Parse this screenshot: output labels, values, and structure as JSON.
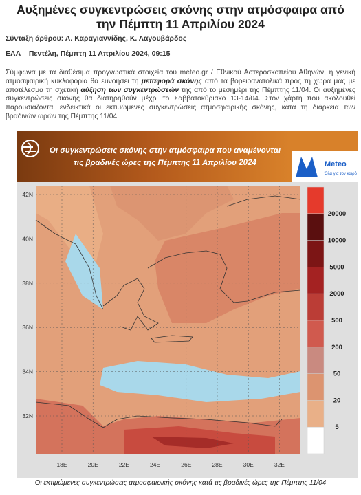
{
  "header": {
    "title": "Αυξημένες συγκεντρώσεις σκόνης στην ατμόσφαιρα από την Πέμπτη 11 Απριλίου 2024",
    "authors": "Σύνταξη άρθρου: Α. Καραγιαννίδης, Κ. Λαγουβάρδος",
    "dateline": "ΕΑΑ – Πεντέλη, Πέμπτη 11 Απριλίου 2024, 09:15"
  },
  "body": {
    "segments": [
      {
        "text": "Σύμφωνα με τα διαθέσιμα προγνωστικά στοιχεία του meteo.gr / Εθνικού Αστεροσκοπείου Αθηνών, η γενική ατμοσφαιρική κυκλοφορία θα ευνοήσει τη ",
        "bold": false
      },
      {
        "text": "μεταφορά σκόνης",
        "bold": true
      },
      {
        "text": " από τα βορειοανατολικά προς τη χώρα μας με αποτέλεσμα τη σχετική ",
        "bold": false
      },
      {
        "text": "αύξηση των συγκεντρώσεών",
        "bold": true
      },
      {
        "text": " της από το μεσημέρι της Πέμπτης 11/04. Οι αυξημένες συγκεντρώσεις σκόνης θα διατηρηθούν μέχρι το Σαββατοκύριακο 13-14/04. Στον χάρτη που ακολουθεί παρουσιάζονται ενδεικτικά οι εκτιμώμενες συγκεντρώσεις ατμοσφαιρικής σκόνης, κατά τη διάρκεια των βραδινών  ωρών της Πέμπτης 11/04.",
        "bold": false
      }
    ]
  },
  "figure": {
    "banner_title": [
      "Οι συγκεντρώσεις σκόνης στην ατμόσφαιρα που αναμένονται",
      "τις βραδινές ώρες της Πέμπτης 11 Απριλίου 2024"
    ],
    "logo": {
      "name": "Meteo",
      "tagline": "Όλα για τον καιρό"
    },
    "lat_labels": [
      "42N",
      "40N",
      "38N",
      "36N",
      "34N",
      "32N"
    ],
    "lon_labels": [
      "18E",
      "20E",
      "22E",
      "24E",
      "26E",
      "28E",
      "30E",
      "32E"
    ],
    "legend": {
      "labels": [
        "20000",
        "10000",
        "5000",
        "2000",
        "500",
        "200",
        "50",
        "20",
        "5"
      ],
      "colors": [
        "#e53a2c",
        "#5a0f0f",
        "#7c1515",
        "#a42222",
        "#bb3d36",
        "#d05a4e",
        "#c98a80",
        "#dc9470",
        "#e9b088",
        "#ffffff"
      ]
    },
    "caption": "Οι εκτιμώμενες συγκεντρώσεις ατμοσφαιρικής σκόνης κατά τις βραδινές ώρες της Πέμπτης 11/04"
  }
}
